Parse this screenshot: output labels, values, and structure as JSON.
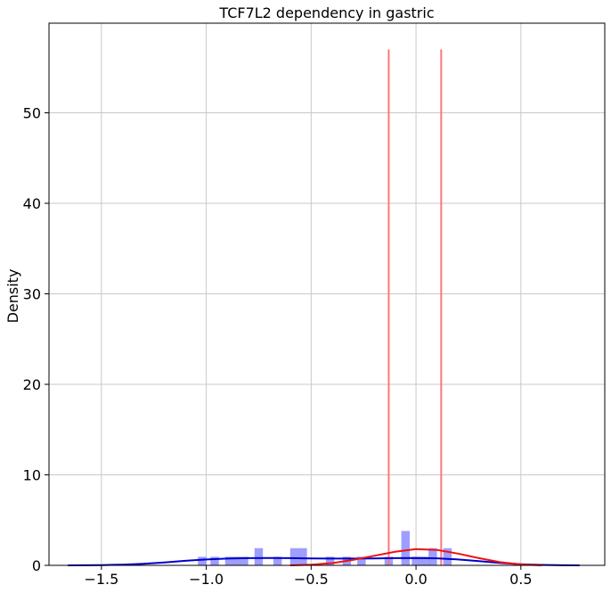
{
  "chart_data": {
    "type": "histogram+kde",
    "title": "TCF7L2 dependency in gastric",
    "xlabel": "",
    "ylabel": "Density",
    "xlim": [
      -1.75,
      0.9
    ],
    "ylim": [
      0,
      59.9
    ],
    "xticks": [
      -1.5,
      -1.0,
      -0.5,
      0.0,
      0.5
    ],
    "xtick_labels": [
      "−1.5",
      "−1.0",
      "−0.5",
      "0.0",
      "0.5"
    ],
    "yticks": [
      0,
      10,
      20,
      30,
      40,
      50
    ],
    "ytick_labels": [
      "0",
      "10",
      "20",
      "30",
      "40",
      "50"
    ],
    "grid": true,
    "colors": {
      "histogram": "#9999ff",
      "kde_all": "#0000cc",
      "kde_gastric": "#ee1111",
      "vlines": "#ff7777"
    },
    "histogram_bins": [
      {
        "x0": -1.04,
        "x1": -1.0,
        "density": 0.95
      },
      {
        "x0": -0.98,
        "x1": -0.94,
        "density": 0.95
      },
      {
        "x0": -0.91,
        "x1": -0.8,
        "density": 0.95
      },
      {
        "x0": -0.77,
        "x1": -0.73,
        "density": 1.9
      },
      {
        "x0": -0.68,
        "x1": -0.64,
        "density": 0.95
      },
      {
        "x0": -0.6,
        "x1": -0.52,
        "density": 1.9
      },
      {
        "x0": -0.43,
        "x1": -0.39,
        "density": 0.95
      },
      {
        "x0": -0.35,
        "x1": -0.31,
        "density": 0.95
      },
      {
        "x0": -0.28,
        "x1": -0.24,
        "density": 0.95
      },
      {
        "x0": -0.15,
        "x1": -0.11,
        "density": 0.95
      },
      {
        "x0": -0.07,
        "x1": -0.03,
        "density": 3.8
      },
      {
        "x0": -0.02,
        "x1": 0.07,
        "density": 0.95
      },
      {
        "x0": 0.06,
        "x1": 0.1,
        "density": 1.9
      },
      {
        "x0": 0.13,
        "x1": 0.17,
        "density": 1.9
      }
    ],
    "series": [
      {
        "kind": "kde",
        "color": "#0000cc",
        "x": [
          -1.66,
          -1.5,
          -1.4,
          -1.3,
          -1.2,
          -1.1,
          -1.0,
          -0.9,
          -0.8,
          -0.7,
          -0.6,
          -0.5,
          -0.4,
          -0.3,
          -0.2,
          -0.1,
          0.0,
          0.1,
          0.2,
          0.3,
          0.4,
          0.5,
          0.6,
          0.7,
          0.78
        ],
        "y": [
          0.0,
          0.03,
          0.08,
          0.18,
          0.33,
          0.5,
          0.65,
          0.75,
          0.8,
          0.82,
          0.8,
          0.77,
          0.75,
          0.75,
          0.77,
          0.8,
          0.82,
          0.78,
          0.65,
          0.46,
          0.28,
          0.13,
          0.05,
          0.01,
          0.0
        ]
      },
      {
        "kind": "kde",
        "color": "#ee1111",
        "x": [
          -0.6,
          -0.5,
          -0.4,
          -0.3,
          -0.2,
          -0.1,
          0.0,
          0.1,
          0.2,
          0.3,
          0.4,
          0.5,
          0.6
        ],
        "y": [
          0.0,
          0.08,
          0.25,
          0.6,
          1.05,
          1.5,
          1.8,
          1.7,
          1.3,
          0.8,
          0.35,
          0.1,
          0.0
        ]
      }
    ],
    "vlines": [
      {
        "x": -0.13,
        "ymax": 57.0
      },
      {
        "x": 0.12,
        "ymax": 57.0
      }
    ]
  }
}
